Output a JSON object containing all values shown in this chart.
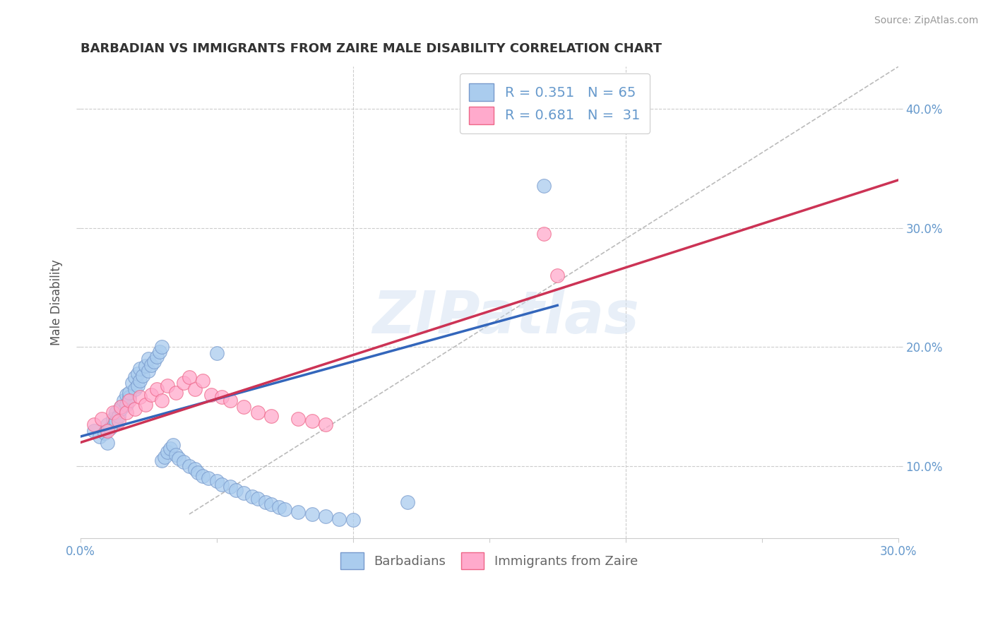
{
  "title": "BARBADIAN VS IMMIGRANTS FROM ZAIRE MALE DISABILITY CORRELATION CHART",
  "source": "Source: ZipAtlas.com",
  "ylabel": "Male Disability",
  "xlim": [
    0.0,
    0.3
  ],
  "ylim": [
    0.04,
    0.435
  ],
  "x_ticks": [
    0.0,
    0.05,
    0.1,
    0.15,
    0.2,
    0.25,
    0.3
  ],
  "x_tick_labels": [
    "0.0%",
    "",
    "",
    "",
    "",
    "",
    "30.0%"
  ],
  "y_ticks": [
    0.1,
    0.2,
    0.3,
    0.4
  ],
  "y_tick_labels": [
    "10.0%",
    "20.0%",
    "30.0%",
    "40.0%"
  ],
  "legend_blue_R": "0.351",
  "legend_blue_N": "65",
  "legend_pink_R": "0.681",
  "legend_pink_N": "31",
  "legend_label_blue": "Barbadians",
  "legend_label_pink": "Immigrants from Zaire",
  "blue_scatter_color": "#AACCEE",
  "pink_scatter_color": "#FFAACC",
  "blue_edge_color": "#7799CC",
  "pink_edge_color": "#EE6688",
  "blue_line_color": "#3366BB",
  "pink_line_color": "#CC3355",
  "ref_line_color": "#BBBBBB",
  "grid_color": "#CCCCCC",
  "title_color": "#333333",
  "tick_color": "#6699CC",
  "source_color": "#999999",
  "watermark": "ZIPatlas",
  "blue_scatter_x": [
    0.005,
    0.007,
    0.009,
    0.01,
    0.01,
    0.011,
    0.012,
    0.013,
    0.013,
    0.014,
    0.015,
    0.015,
    0.016,
    0.017,
    0.017,
    0.018,
    0.018,
    0.019,
    0.02,
    0.02,
    0.021,
    0.021,
    0.022,
    0.022,
    0.023,
    0.024,
    0.025,
    0.025,
    0.026,
    0.027,
    0.028,
    0.029,
    0.03,
    0.03,
    0.031,
    0.032,
    0.033,
    0.034,
    0.035,
    0.036,
    0.038,
    0.04,
    0.042,
    0.043,
    0.045,
    0.047,
    0.05,
    0.052,
    0.055,
    0.057,
    0.06,
    0.063,
    0.065,
    0.068,
    0.07,
    0.073,
    0.075,
    0.08,
    0.085,
    0.09,
    0.095,
    0.1,
    0.12,
    0.17,
    0.05
  ],
  "blue_scatter_y": [
    0.13,
    0.125,
    0.128,
    0.135,
    0.12,
    0.132,
    0.14,
    0.138,
    0.145,
    0.142,
    0.15,
    0.148,
    0.155,
    0.16,
    0.152,
    0.158,
    0.162,
    0.17,
    0.165,
    0.175,
    0.168,
    0.178,
    0.172,
    0.182,
    0.176,
    0.184,
    0.18,
    0.19,
    0.185,
    0.188,
    0.192,
    0.196,
    0.2,
    0.105,
    0.108,
    0.112,
    0.115,
    0.118,
    0.11,
    0.107,
    0.104,
    0.1,
    0.098,
    0.095,
    0.092,
    0.09,
    0.088,
    0.085,
    0.083,
    0.08,
    0.078,
    0.075,
    0.073,
    0.07,
    0.068,
    0.066,
    0.064,
    0.062,
    0.06,
    0.058,
    0.056,
    0.055,
    0.07,
    0.335,
    0.195
  ],
  "pink_scatter_x": [
    0.005,
    0.008,
    0.01,
    0.012,
    0.014,
    0.015,
    0.017,
    0.018,
    0.02,
    0.022,
    0.024,
    0.026,
    0.028,
    0.03,
    0.032,
    0.035,
    0.038,
    0.04,
    0.042,
    0.045,
    0.048,
    0.052,
    0.055,
    0.06,
    0.065,
    0.07,
    0.08,
    0.085,
    0.09,
    0.17,
    0.175
  ],
  "pink_scatter_y": [
    0.135,
    0.14,
    0.13,
    0.145,
    0.138,
    0.15,
    0.145,
    0.155,
    0.148,
    0.158,
    0.152,
    0.16,
    0.165,
    0.155,
    0.168,
    0.162,
    0.17,
    0.175,
    0.165,
    0.172,
    0.16,
    0.158,
    0.155,
    0.15,
    0.145,
    0.142,
    0.14,
    0.138,
    0.135,
    0.295,
    0.26
  ],
  "blue_line_x": [
    0.0,
    0.175
  ],
  "blue_line_y": [
    0.125,
    0.235
  ],
  "pink_line_x": [
    0.0,
    0.3
  ],
  "pink_line_y": [
    0.12,
    0.34
  ],
  "ref_line_x": [
    0.04,
    0.3
  ],
  "ref_line_y": [
    0.06,
    0.435
  ]
}
